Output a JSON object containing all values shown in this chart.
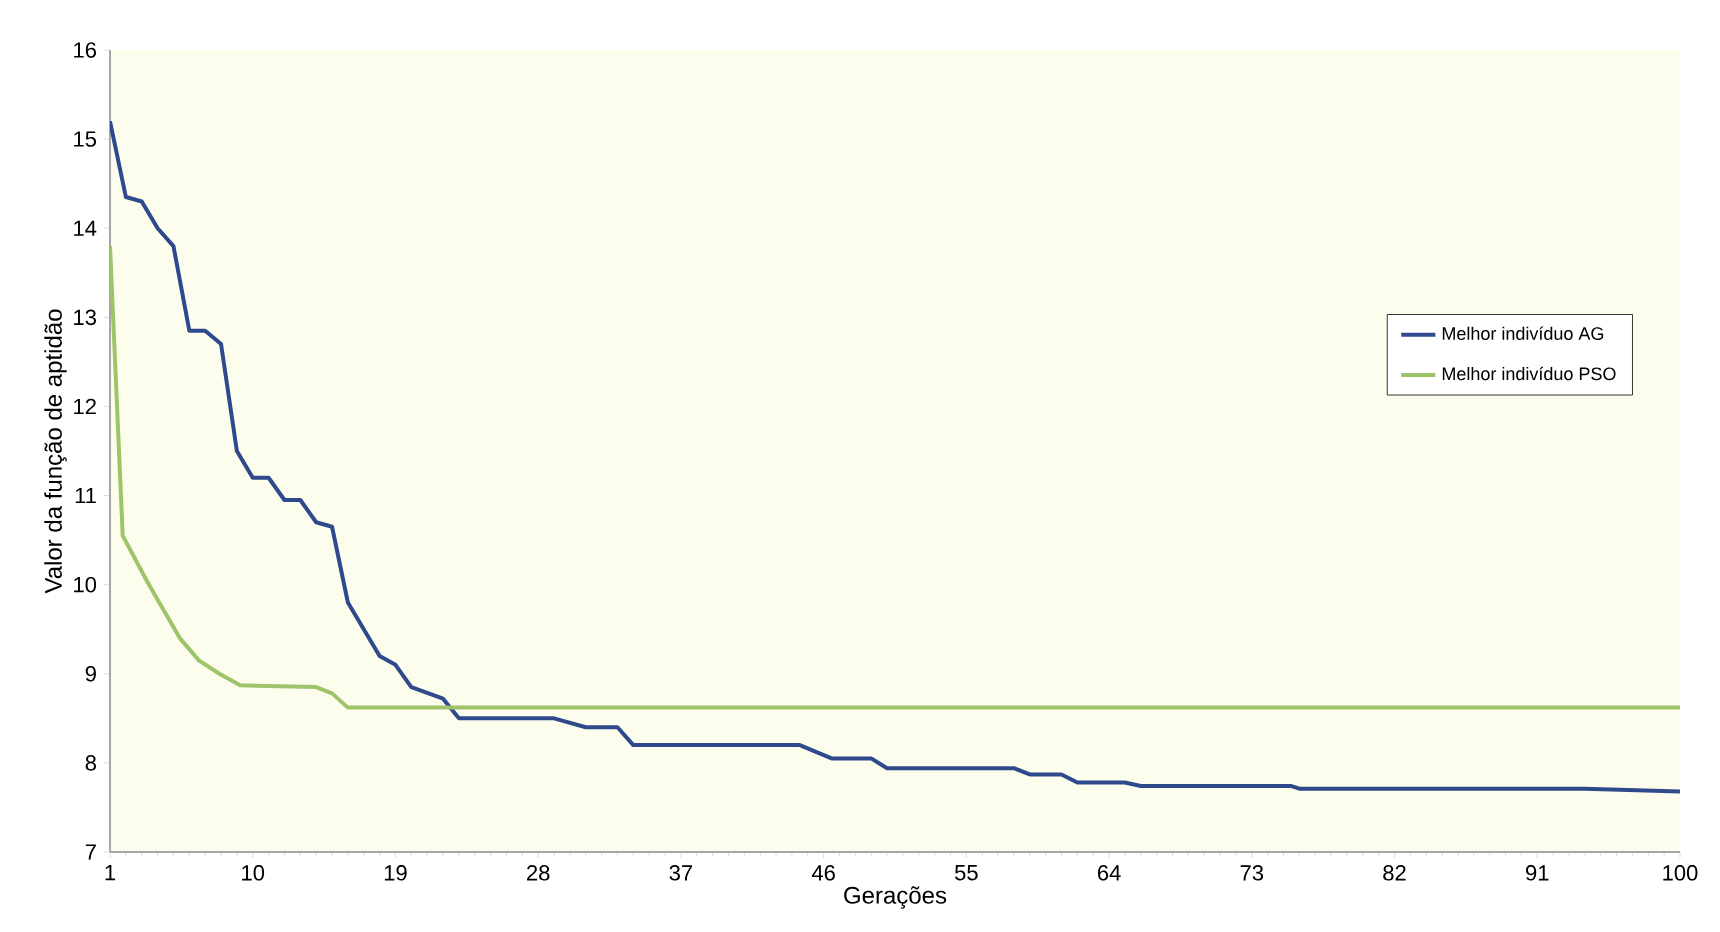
{
  "chart_data": {
    "type": "line",
    "xlabel": "Gerações",
    "ylabel": "Valor da função de aptidão",
    "xlim": [
      1,
      100
    ],
    "xticks": [
      1,
      10,
      19,
      28,
      37,
      46,
      55,
      64,
      73,
      82,
      91,
      100
    ],
    "ylim": [
      7,
      16
    ],
    "yticks": [
      7,
      8,
      9,
      10,
      11,
      12,
      13,
      14,
      15,
      16
    ],
    "grid": false,
    "legend": "right",
    "marker": "none",
    "line_style": "solid",
    "series": [
      {
        "name": "Melhor indivíduo AG",
        "color": "#2e4a8c",
        "x": [
          1,
          2,
          3,
          4,
          5,
          6,
          7,
          8,
          9,
          10,
          11,
          12,
          13,
          14,
          15,
          16,
          17,
          18,
          19,
          20,
          22,
          23,
          29,
          31,
          33,
          34,
          44.5,
          46.5,
          49,
          50,
          58,
          59,
          61,
          62,
          65,
          66,
          75.5,
          76,
          94,
          100
        ],
        "values": [
          15.2,
          14.35,
          14.3,
          14.0,
          13.8,
          12.85,
          12.85,
          12.7,
          11.5,
          11.2,
          11.2,
          10.95,
          10.95,
          10.7,
          10.65,
          9.8,
          9.5,
          9.2,
          9.1,
          8.85,
          8.72,
          8.5,
          8.5,
          8.4,
          8.4,
          8.2,
          8.2,
          8.05,
          8.05,
          7.94,
          7.94,
          7.87,
          7.87,
          7.78,
          7.78,
          7.74,
          7.74,
          7.71,
          7.71,
          7.68
        ]
      },
      {
        "name": "Melhor indivíduo PSO",
        "color": "#9dc46a",
        "x": [
          1,
          1.8,
          3.3,
          4,
          5.4,
          6.6,
          7.9,
          9.2,
          14,
          15,
          16,
          100
        ],
        "values": [
          13.8,
          10.55,
          10.05,
          9.83,
          9.4,
          9.15,
          9.0,
          8.87,
          8.85,
          8.78,
          8.62,
          8.62
        ]
      }
    ]
  }
}
